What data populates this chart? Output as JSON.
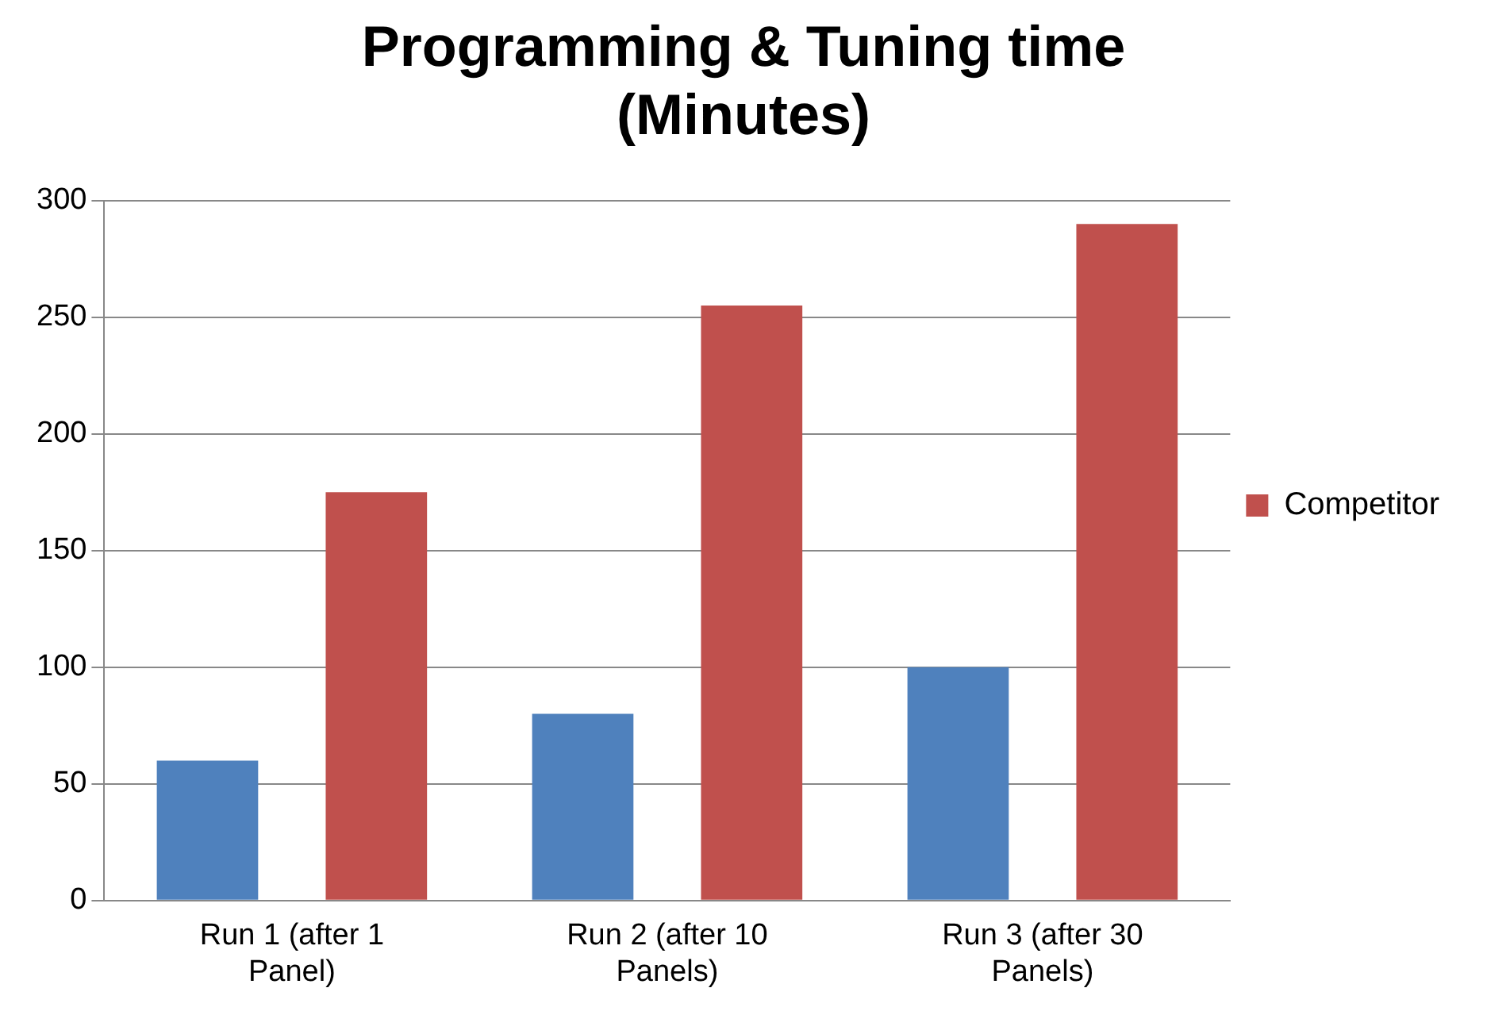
{
  "chart_data": {
    "type": "bar",
    "title": "Programming & Tuning time (Minutes)",
    "categories": [
      "Run 1 (after 1 Panel)",
      "Run 2 (after 10 Panels)",
      "Run 3 (after 30 Panels)"
    ],
    "series": [
      {
        "color": "#4f81bd",
        "values": [
          60,
          80,
          100
        ]
      },
      {
        "name": "Competitor",
        "color": "#c0504d",
        "values": [
          175,
          255,
          290
        ]
      }
    ],
    "ylim": [
      0,
      300
    ],
    "yticks": [
      0,
      50,
      100,
      150,
      200,
      250,
      300
    ],
    "grid": "y",
    "legend": "right"
  }
}
